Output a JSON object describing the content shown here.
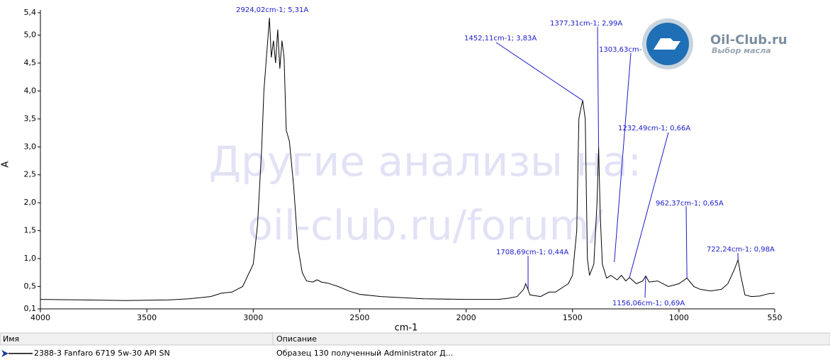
{
  "chart_data": {
    "type": "line",
    "x_label": "cm-1",
    "y_label": "A",
    "xlim": [
      4000,
      550
    ],
    "ylim": [
      0.1,
      5.4
    ],
    "xticks": [
      4000,
      3500,
      3000,
      2500,
      2000,
      1500,
      1000,
      550
    ],
    "yticks": [
      {
        "value": 0.1,
        "label": "0,1"
      },
      {
        "value": 0.5,
        "label": "0,5"
      },
      {
        "value": 1.0,
        "label": "1,0"
      },
      {
        "value": 1.5,
        "label": "1,5"
      },
      {
        "value": 2.0,
        "label": "2,0"
      },
      {
        "value": 2.5,
        "label": "2,5"
      },
      {
        "value": 3.0,
        "label": "3,0"
      },
      {
        "value": 3.5,
        "label": "3,5"
      },
      {
        "value": 4.0,
        "label": "4,0"
      },
      {
        "value": 4.5,
        "label": "4,5"
      },
      {
        "value": 5.0,
        "label": "5,0"
      },
      {
        "value": 5.4,
        "label": "5,4"
      }
    ],
    "x": [
      4000,
      3800,
      3600,
      3400,
      3300,
      3200,
      3150,
      3100,
      3050,
      3000,
      2980,
      2960,
      2950,
      2940,
      2930,
      2924.02,
      2915,
      2905,
      2895,
      2885,
      2875,
      2865,
      2855,
      2845,
      2830,
      2810,
      2790,
      2770,
      2750,
      2720,
      2700,
      2680,
      2650,
      2600,
      2550,
      2500,
      2400,
      2200,
      2000,
      1850,
      1800,
      1760,
      1730,
      1720,
      1708.69,
      1700,
      1650,
      1610,
      1580,
      1520,
      1500,
      1480,
      1470,
      1460,
      1452.11,
      1440,
      1430,
      1420,
      1400,
      1385,
      1377.31,
      1370,
      1360,
      1340,
      1320,
      1290,
      1270,
      1250,
      1232.49,
      1200,
      1170,
      1156.06,
      1140,
      1100,
      1050,
      1000,
      962.37,
      930,
      900,
      850,
      800,
      770,
      740,
      722.24,
      710,
      690,
      660,
      620,
      580,
      550
    ],
    "series": [
      {
        "name": "2388-3 Fanfaro 6719 5w-30 API SN",
        "color": "#000000",
        "values": [
          0.27,
          0.26,
          0.25,
          0.26,
          0.28,
          0.32,
          0.38,
          0.4,
          0.5,
          0.9,
          1.6,
          3.0,
          4.0,
          4.5,
          5.0,
          5.31,
          4.6,
          4.9,
          4.5,
          5.1,
          4.4,
          4.9,
          4.6,
          3.3,
          3.1,
          2.3,
          1.2,
          0.75,
          0.6,
          0.58,
          0.62,
          0.58,
          0.56,
          0.5,
          0.42,
          0.36,
          0.32,
          0.28,
          0.27,
          0.27,
          0.29,
          0.32,
          0.45,
          0.55,
          0.44,
          0.35,
          0.32,
          0.4,
          0.4,
          0.55,
          0.7,
          1.5,
          3.5,
          3.7,
          3.83,
          3.5,
          1.0,
          0.7,
          0.9,
          2.0,
          2.99,
          1.8,
          0.9,
          0.65,
          0.7,
          0.62,
          0.7,
          0.6,
          0.66,
          0.55,
          0.6,
          0.69,
          0.58,
          0.6,
          0.5,
          0.55,
          0.65,
          0.5,
          0.45,
          0.42,
          0.45,
          0.55,
          0.8,
          0.98,
          0.7,
          0.35,
          0.32,
          0.33,
          0.37,
          0.38
        ]
      }
    ],
    "annotations": [
      {
        "label": "2924,02cm-1; 5,31A",
        "x": 2924.02,
        "y": 5.31
      },
      {
        "label": "1452,11cm-1; 3,83A",
        "x": 1452.11,
        "y": 3.83
      },
      {
        "label": "1377,31cm-1; 2,99A",
        "x": 1377.31,
        "y": 2.99
      },
      {
        "label": "1303,63cm-",
        "x": 1303.63
      },
      {
        "label": "1232,49cm-1; 0,66A",
        "x": 1232.49,
        "y": 0.66
      },
      {
        "label": "962,37cm-1; 0,65A",
        "x": 962.37,
        "y": 0.65
      },
      {
        "label": "722,24cm-1; 0,98A",
        "x": 722.24,
        "y": 0.98
      },
      {
        "label": "1708,69cm-1; 0,44A",
        "x": 1708.69,
        "y": 0.44
      },
      {
        "label": "1156,06cm-1; 0,69A",
        "x": 1156.06,
        "y": 0.69
      }
    ]
  },
  "watermark": [
    "Другие анализы на:",
    "oil-club.ru/forum/"
  ],
  "logo": {
    "title": "Oil-Club.ru",
    "subtitle": "Выбор масла"
  },
  "table": {
    "headers": [
      "Имя",
      "Описание"
    ],
    "description": "Образец 130 полученный Administrator Д..."
  }
}
